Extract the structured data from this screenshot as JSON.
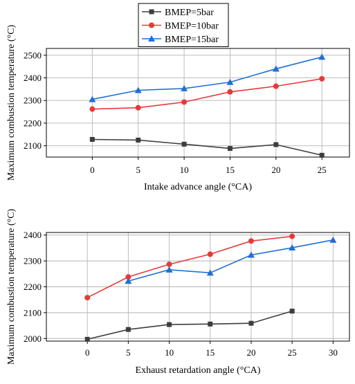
{
  "legend": {
    "placement": "top-center",
    "entries": [
      {
        "label": "BMEP=5bar",
        "color": "#3d3d3d",
        "marker": "square"
      },
      {
        "label": "BMEP=10bar",
        "color": "#e8393a",
        "marker": "circle"
      },
      {
        "label": "BMEP=15bar",
        "color": "#1f6fd6",
        "marker": "triangle"
      }
    ]
  },
  "chart_data": [
    {
      "type": "line",
      "xlabel": "Intake advance angle (°CA)",
      "ylabel": "Maximum combustion temperature (°C)",
      "xlim": [
        -5,
        28
      ],
      "ylim": [
        2050,
        2530
      ],
      "xticks": [
        0,
        5,
        10,
        15,
        20,
        25
      ],
      "yticks": [
        2100,
        2200,
        2300,
        2400,
        2500
      ],
      "grid": true,
      "series": [
        {
          "name": "BMEP=5bar",
          "color": "#3d3d3d",
          "marker": "square",
          "x": [
            0,
            5,
            10,
            15,
            20,
            25
          ],
          "y": [
            2128,
            2125,
            2107,
            2088,
            2105,
            2058
          ]
        },
        {
          "name": "BMEP=10bar",
          "color": "#e8393a",
          "marker": "circle",
          "x": [
            0,
            5,
            10,
            15,
            20,
            25
          ],
          "y": [
            2262,
            2268,
            2293,
            2338,
            2363,
            2396
          ]
        },
        {
          "name": "BMEP=15bar",
          "color": "#1f6fd6",
          "marker": "triangle",
          "x": [
            0,
            5,
            10,
            15,
            20,
            25
          ],
          "y": [
            2305,
            2345,
            2353,
            2381,
            2440,
            2492
          ]
        }
      ]
    },
    {
      "type": "line",
      "xlabel": "Exhaust retardation angle (°CA)",
      "ylabel": "Maximum combustion temperature (°C)",
      "xlim": [
        -5,
        32
      ],
      "ylim": [
        1990,
        2410
      ],
      "xticks": [
        0,
        5,
        10,
        15,
        20,
        25,
        30
      ],
      "yticks": [
        2000,
        2100,
        2200,
        2300,
        2400
      ],
      "grid": true,
      "series": [
        {
          "name": "BMEP=5bar",
          "color": "#3d3d3d",
          "marker": "square",
          "x": [
            0,
            5,
            10,
            15,
            20,
            25
          ],
          "y": [
            1997,
            2035,
            2054,
            2056,
            2059,
            2106
          ]
        },
        {
          "name": "BMEP=10bar",
          "color": "#e8393a",
          "marker": "circle",
          "x": [
            0,
            5,
            10,
            15,
            20,
            25
          ],
          "y": [
            2158,
            2238,
            2287,
            2326,
            2377,
            2395
          ]
        },
        {
          "name": "BMEP=15bar",
          "color": "#1f6fd6",
          "marker": "triangle",
          "x": [
            5,
            10,
            15,
            20,
            25,
            30
          ],
          "y": [
            2222,
            2266,
            2254,
            2323,
            2351,
            2381
          ]
        }
      ]
    }
  ]
}
